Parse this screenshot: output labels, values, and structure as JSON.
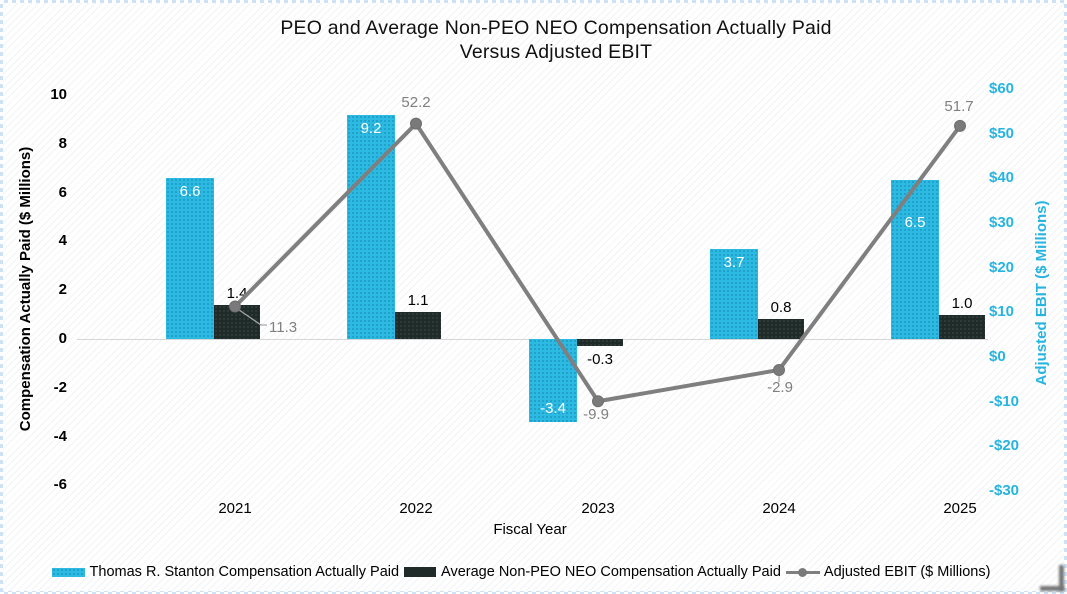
{
  "title": {
    "line1": "PEO and Average Non-PEO NEO Compensation Actually Paid",
    "line2": "Versus Adjusted EBIT"
  },
  "chart_data": {
    "type": "bar+line combo",
    "title": "PEO and Average Non-PEO NEO Compensation Actually Paid Versus Adjusted EBIT",
    "categories": [
      "2021",
      "2022",
      "2023",
      "2024",
      "2025"
    ],
    "series": [
      {
        "name": "Thomas R. Stanton Compensation Actually Paid",
        "type": "bar",
        "axis": "left",
        "color": "#2cbae3",
        "values": [
          6.6,
          9.2,
          -3.4,
          3.7,
          6.5
        ]
      },
      {
        "name": "Average Non-PEO NEO Compensation Actually Paid",
        "type": "bar",
        "axis": "left",
        "color": "#1f2b29",
        "values": [
          1.4,
          1.1,
          -0.3,
          0.8,
          1.0
        ]
      },
      {
        "name": "Adjusted EBIT ($ Millions)",
        "type": "line",
        "axis": "right",
        "color": "#7f7f7f",
        "values": [
          11.3,
          52.2,
          -9.9,
          -2.9,
          51.7
        ]
      }
    ],
    "xlabel": "Fiscal Year",
    "left_axis": {
      "label": "Compensation Actually Paid ($ Millions)",
      "ticks": [
        10,
        8,
        6,
        4,
        2,
        0,
        -2,
        -4,
        -6
      ],
      "range": [
        -6,
        10
      ],
      "color": "#000000"
    },
    "right_axis": {
      "label": "Adjusted EBIT ($ Millions)",
      "ticks": [
        "$60",
        "$50",
        "$40",
        "$30",
        "$20",
        "$10",
        "$0",
        "-$10",
        "-$20",
        "-$30"
      ],
      "range": [
        -30,
        60
      ],
      "color": "#27b4df"
    },
    "grid": "off",
    "legend_position": "bottom"
  }
}
